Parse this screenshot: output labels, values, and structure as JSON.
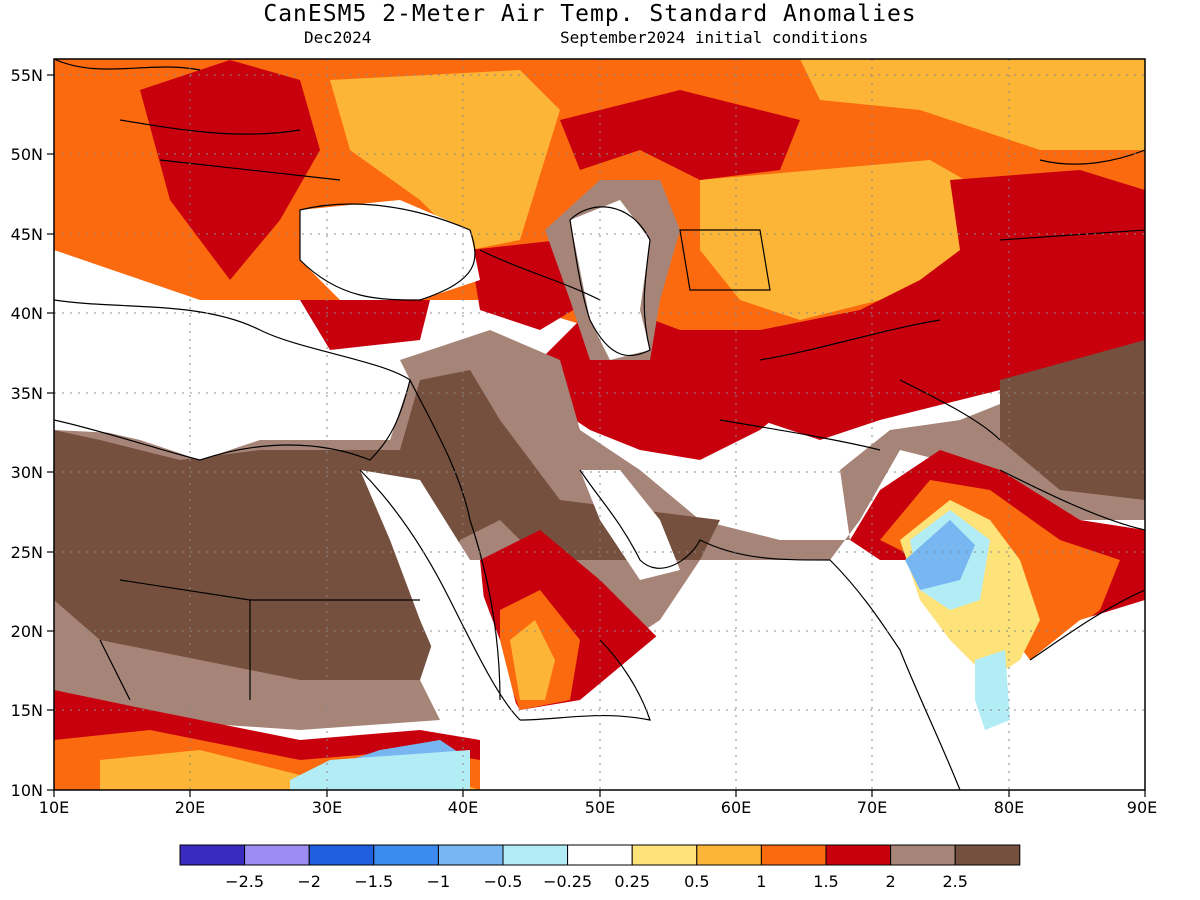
{
  "title": "CanESM5 2-Meter Air Temp. Standard Anomalies",
  "subtitle_left": "Dec2024",
  "subtitle_right": "September2024 initial conditions",
  "map": {
    "lon_range": [
      10,
      90
    ],
    "lat_range": [
      10,
      56
    ],
    "lon_ticks": [
      "10E",
      "20E",
      "30E",
      "40E",
      "50E",
      "60E",
      "70E",
      "80E",
      "90E"
    ],
    "lat_ticks": [
      "55N",
      "50N",
      "45N",
      "40N",
      "35N",
      "30N",
      "25N",
      "20N",
      "15N",
      "10N"
    ],
    "grid": "dotted",
    "colors": {
      "c_m25": "#3a2bbf",
      "c_m2": "#9d8df2",
      "c_m15": "#1f5fe0",
      "c_m1": "#3c8cf0",
      "c_m05": "#78b6f2",
      "c_m025": "#b2ecf5",
      "c_0": "#ffffff",
      "c_025": "#fee27a",
      "c_05": "#fdb537",
      "c_1": "#fc6a10",
      "c_15": "#c8000e",
      "c_2": "#a68578",
      "c_25": "#76503f",
      "land_line": "#000000"
    }
  },
  "colorbar": {
    "colors": [
      "#3a2bbf",
      "#9d8df2",
      "#1f5fe0",
      "#3c8cf0",
      "#78b6f2",
      "#b2ecf5",
      "#ffffff",
      "#fee27a",
      "#fdb537",
      "#fc6a10",
      "#c8000e",
      "#a68578",
      "#76503f"
    ],
    "labels": [
      "−2.5",
      "−2",
      "−1.5",
      "−1",
      "−0.5",
      "−0.25",
      "0.25",
      "0.5",
      "1",
      "1.5",
      "2",
      "2.5"
    ]
  }
}
